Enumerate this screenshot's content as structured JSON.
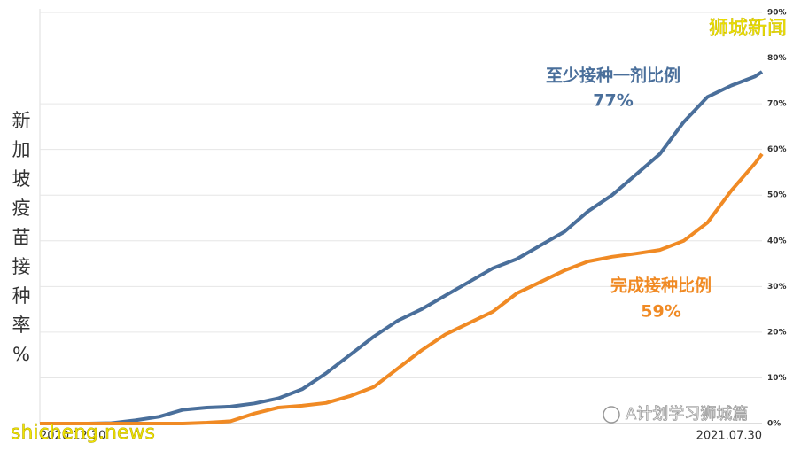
{
  "chart_data": {
    "type": "line",
    "y_label": "新加坡疫苗接种率%",
    "x": [
      "2020.12.30",
      "2021.01.06",
      "2021.01.13",
      "2021.01.20",
      "2021.01.27",
      "2021.02.03",
      "2021.02.10",
      "2021.02.17",
      "2021.02.24",
      "2021.03.03",
      "2021.03.10",
      "2021.03.17",
      "2021.03.24",
      "2021.03.31",
      "2021.04.07",
      "2021.04.14",
      "2021.04.21",
      "2021.04.28",
      "2021.05.05",
      "2021.05.12",
      "2021.05.19",
      "2021.05.26",
      "2021.06.02",
      "2021.06.09",
      "2021.06.16",
      "2021.06.23",
      "2021.06.30",
      "2021.07.07",
      "2021.07.14",
      "2021.07.21",
      "2021.07.28",
      "2021.07.30"
    ],
    "xticks": [
      "2020.12.30",
      "2021.07.30"
    ],
    "series": [
      {
        "name": "至少接种一剂比例",
        "color": "#4a6f9b",
        "values": [
          0,
          0,
          0,
          0.1,
          0.7,
          1.5,
          3,
          3.5,
          3.7,
          4.4,
          5.5,
          7.5,
          11,
          15,
          19,
          22.5,
          25,
          28,
          31,
          34,
          36,
          39,
          42,
          46.5,
          50,
          54.5,
          59,
          66,
          71.5,
          74,
          76,
          77
        ],
        "end_label": "77%"
      },
      {
        "name": "完成接种比例",
        "color": "#f08a24",
        "values": [
          0,
          0,
          0,
          0,
          0,
          0,
          0,
          0.2,
          0.5,
          2.2,
          3.5,
          3.9,
          4.5,
          6,
          8,
          12,
          16,
          19.5,
          22,
          24.5,
          28.5,
          31,
          33.5,
          35.5,
          36.5,
          37.2,
          38,
          40,
          44,
          51,
          57,
          59
        ],
        "end_label": "59%"
      }
    ],
    "ylim": [
      0,
      90
    ],
    "yticks": [
      {
        "value": 0,
        "label": "0%"
      },
      {
        "value": 10,
        "label": "10%"
      },
      {
        "value": 20,
        "label": "20%"
      },
      {
        "value": 30,
        "label": "30%"
      },
      {
        "value": 40,
        "label": "40%"
      },
      {
        "value": 50,
        "label": "50%"
      },
      {
        "value": 60,
        "label": "60%"
      },
      {
        "value": 70,
        "label": "70%"
      },
      {
        "value": 80,
        "label": "80%"
      },
      {
        "value": 90,
        "label": "90%"
      }
    ],
    "grid": true,
    "watermarks": [
      "狮城新闻",
      "shicheng.news",
      "A计划学习狮城篇"
    ]
  }
}
